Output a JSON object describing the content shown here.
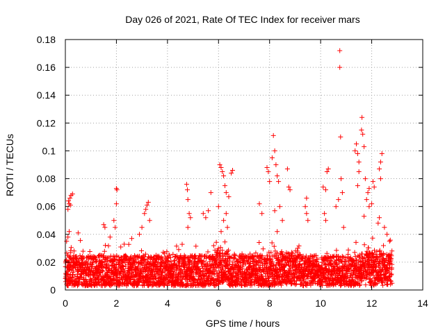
{
  "chart_data": {
    "type": "scatter",
    "title": "Day 026 of 2021, Rate Of TEC Index for receiver mars",
    "xlabel": "GPS time / hours",
    "ylabel": "ROTI / TECUs",
    "xlim": [
      0,
      14
    ],
    "ylim": [
      0,
      0.18
    ],
    "xticks": [
      "0",
      "2",
      "4",
      "6",
      "8",
      "10",
      "12",
      "14"
    ],
    "yticks": [
      "0",
      "0.02",
      "0.04",
      "0.06",
      "0.08",
      "0.1",
      "0.12",
      "0.14",
      "0.16",
      "0.18"
    ],
    "grid": true,
    "marker": "+",
    "series": [
      {
        "name": "ROTI",
        "color": "#ff0000",
        "points": [
          [
            0.05,
            0.035
          ],
          [
            0.1,
            0.058
          ],
          [
            0.12,
            0.064
          ],
          [
            0.15,
            0.062
          ],
          [
            0.18,
            0.066
          ],
          [
            0.2,
            0.061
          ],
          [
            0.22,
            0.068
          ],
          [
            0.28,
            0.069
          ],
          [
            0.15,
            0.042
          ],
          [
            0.1,
            0.038
          ],
          [
            0.5,
            0.041
          ],
          [
            1.5,
            0.047
          ],
          [
            1.55,
            0.045
          ],
          [
            1.9,
            0.05
          ],
          [
            1.95,
            0.045
          ],
          [
            2.0,
            0.073
          ],
          [
            2.02,
            0.072
          ],
          [
            2.0,
            0.062
          ],
          [
            1.75,
            0.038
          ],
          [
            2.6,
            0.037
          ],
          [
            2.9,
            0.04
          ],
          [
            3.0,
            0.045
          ],
          [
            3.1,
            0.055
          ],
          [
            3.15,
            0.058
          ],
          [
            3.2,
            0.061
          ],
          [
            3.25,
            0.063
          ],
          [
            3.3,
            0.05
          ],
          [
            4.75,
            0.076
          ],
          [
            4.78,
            0.072
          ],
          [
            4.8,
            0.065
          ],
          [
            4.85,
            0.055
          ],
          [
            4.9,
            0.052
          ],
          [
            4.8,
            0.045
          ],
          [
            5.4,
            0.055
          ],
          [
            5.5,
            0.052
          ],
          [
            5.6,
            0.057
          ],
          [
            5.7,
            0.07
          ],
          [
            6.0,
            0.06
          ],
          [
            6.05,
            0.09
          ],
          [
            6.1,
            0.088
          ],
          [
            6.15,
            0.085
          ],
          [
            6.2,
            0.082
          ],
          [
            6.25,
            0.075
          ],
          [
            6.3,
            0.07
          ],
          [
            6.4,
            0.067
          ],
          [
            6.5,
            0.084
          ],
          [
            6.55,
            0.086
          ],
          [
            6.3,
            0.055
          ],
          [
            6.2,
            0.05
          ],
          [
            6.1,
            0.042
          ],
          [
            6.35,
            0.045
          ],
          [
            7.6,
            0.062
          ],
          [
            7.7,
            0.055
          ],
          [
            7.9,
            0.088
          ],
          [
            7.95,
            0.085
          ],
          [
            8.0,
            0.078
          ],
          [
            8.1,
            0.095
          ],
          [
            8.15,
            0.111
          ],
          [
            8.2,
            0.1
          ],
          [
            8.25,
            0.09
          ],
          [
            8.3,
            0.082
          ],
          [
            8.35,
            0.078
          ],
          [
            8.4,
            0.06
          ],
          [
            8.2,
            0.057
          ],
          [
            8.7,
            0.087
          ],
          [
            8.75,
            0.074
          ],
          [
            8.8,
            0.072
          ],
          [
            8.5,
            0.05
          ],
          [
            8.3,
            0.042
          ],
          [
            9.4,
            0.06
          ],
          [
            9.45,
            0.055
          ],
          [
            9.5,
            0.05
          ],
          [
            9.45,
            0.066
          ],
          [
            10.1,
            0.074
          ],
          [
            10.2,
            0.072
          ],
          [
            10.25,
            0.085
          ],
          [
            10.3,
            0.087
          ],
          [
            10.15,
            0.055
          ],
          [
            10.2,
            0.05
          ],
          [
            10.75,
            0.172
          ],
          [
            10.75,
            0.16
          ],
          [
            10.78,
            0.11
          ],
          [
            10.8,
            0.08
          ],
          [
            10.85,
            0.07
          ],
          [
            10.7,
            0.065
          ],
          [
            10.6,
            0.06
          ],
          [
            10.9,
            0.045
          ],
          [
            11.35,
            0.1
          ],
          [
            11.4,
            0.105
          ],
          [
            11.45,
            0.098
          ],
          [
            11.5,
            0.092
          ],
          [
            11.5,
            0.085
          ],
          [
            11.45,
            0.075
          ],
          [
            11.6,
            0.115
          ],
          [
            11.62,
            0.124
          ],
          [
            11.65,
            0.112
          ],
          [
            11.7,
            0.103
          ],
          [
            11.75,
            0.08
          ],
          [
            11.8,
            0.065
          ],
          [
            11.85,
            0.07
          ],
          [
            11.9,
            0.073
          ],
          [
            11.7,
            0.053
          ],
          [
            11.9,
            0.06
          ],
          [
            12.0,
            0.062
          ],
          [
            12.05,
            0.078
          ],
          [
            12.1,
            0.074
          ],
          [
            12.3,
            0.087
          ],
          [
            12.35,
            0.092
          ],
          [
            12.4,
            0.098
          ],
          [
            12.35,
            0.08
          ],
          [
            12.3,
            0.052
          ],
          [
            12.25,
            0.048
          ],
          [
            12.5,
            0.045
          ],
          [
            12.6,
            0.04
          ],
          [
            12.7,
            0.035
          ]
        ],
        "baseline_band": {
          "description": "dense band of points spanning the observed time range",
          "x_range": [
            0,
            12.8
          ],
          "typical_min": 0.003,
          "typical_max": 0.025
        }
      }
    ]
  }
}
